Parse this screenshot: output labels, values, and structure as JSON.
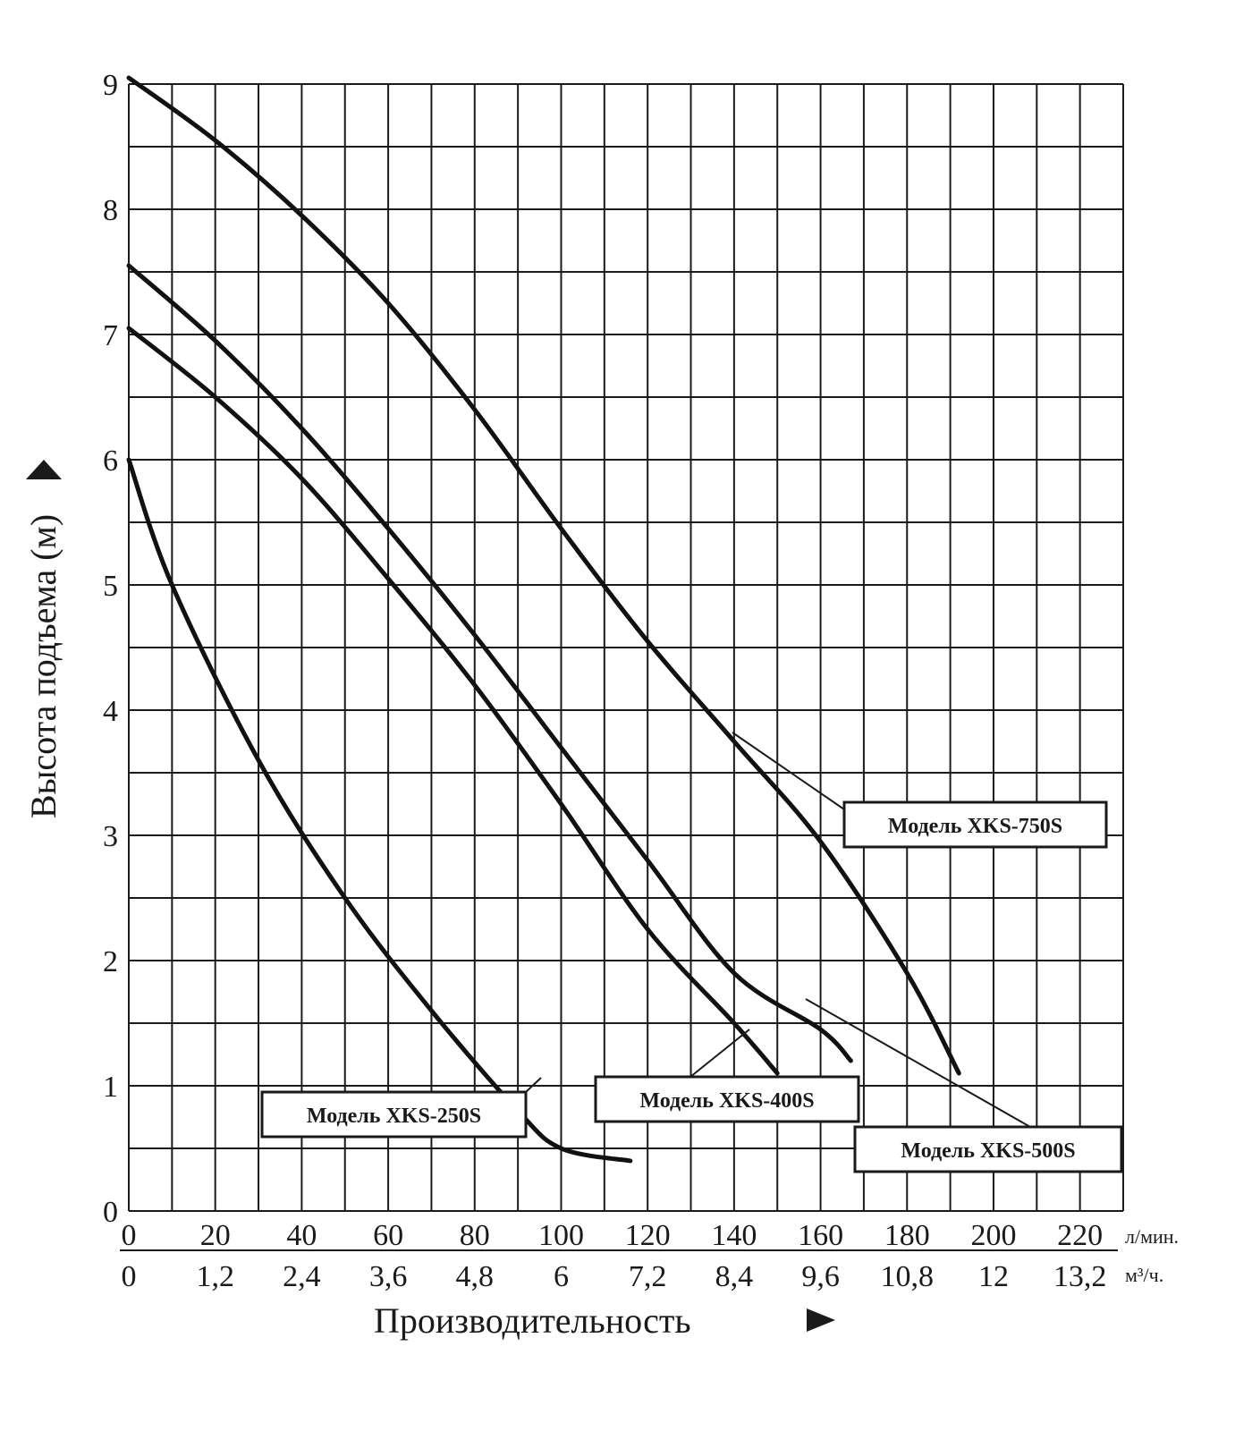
{
  "chart_data": {
    "type": "line",
    "ylabel": "Высота подъема (м)",
    "xlabel": "Производительность",
    "ylim": [
      0,
      9
    ],
    "xlim": [
      0,
      230
    ],
    "yticks": [
      "0",
      "1",
      "2",
      "3",
      "4",
      "5",
      "6",
      "7",
      "8",
      "9"
    ],
    "xticks_primary": [
      "0",
      "20",
      "40",
      "60",
      "80",
      "100",
      "120",
      "140",
      "160",
      "180",
      "200",
      "220"
    ],
    "xticks_primary_unit": "л/мин.",
    "xticks_secondary": [
      "0",
      "1,2",
      "2,4",
      "3,6",
      "4,8",
      "6",
      "7,2",
      "8,4",
      "9,6",
      "10,8",
      "12",
      "13,2"
    ],
    "xticks_secondary_unit": "м³/ч.",
    "grid": true,
    "series": [
      {
        "name": "Модель XKS-250S",
        "x": [
          0,
          10,
          30,
          50,
          70,
          90,
          100,
          116
        ],
        "y": [
          6.0,
          5.0,
          3.6,
          2.5,
          1.6,
          0.8,
          0.5,
          0.4
        ]
      },
      {
        "name": "Модель XKS-400S",
        "x": [
          0,
          20,
          40,
          60,
          80,
          100,
          120,
          140,
          150
        ],
        "y": [
          7.05,
          6.5,
          5.85,
          5.05,
          4.2,
          3.25,
          2.25,
          1.5,
          1.1
        ]
      },
      {
        "name": "Модель XKS-500S",
        "x": [
          0,
          20,
          40,
          60,
          80,
          100,
          120,
          140,
          160,
          167
        ],
        "y": [
          7.55,
          6.95,
          6.25,
          5.45,
          4.6,
          3.7,
          2.8,
          1.9,
          1.45,
          1.2
        ]
      },
      {
        "name": "Модель XKS-750S",
        "x": [
          0,
          20,
          40,
          60,
          80,
          100,
          120,
          140,
          160,
          180,
          192
        ],
        "y": [
          9.05,
          8.55,
          7.95,
          7.25,
          6.4,
          5.45,
          4.55,
          3.75,
          2.95,
          1.9,
          1.1
        ]
      }
    ]
  }
}
